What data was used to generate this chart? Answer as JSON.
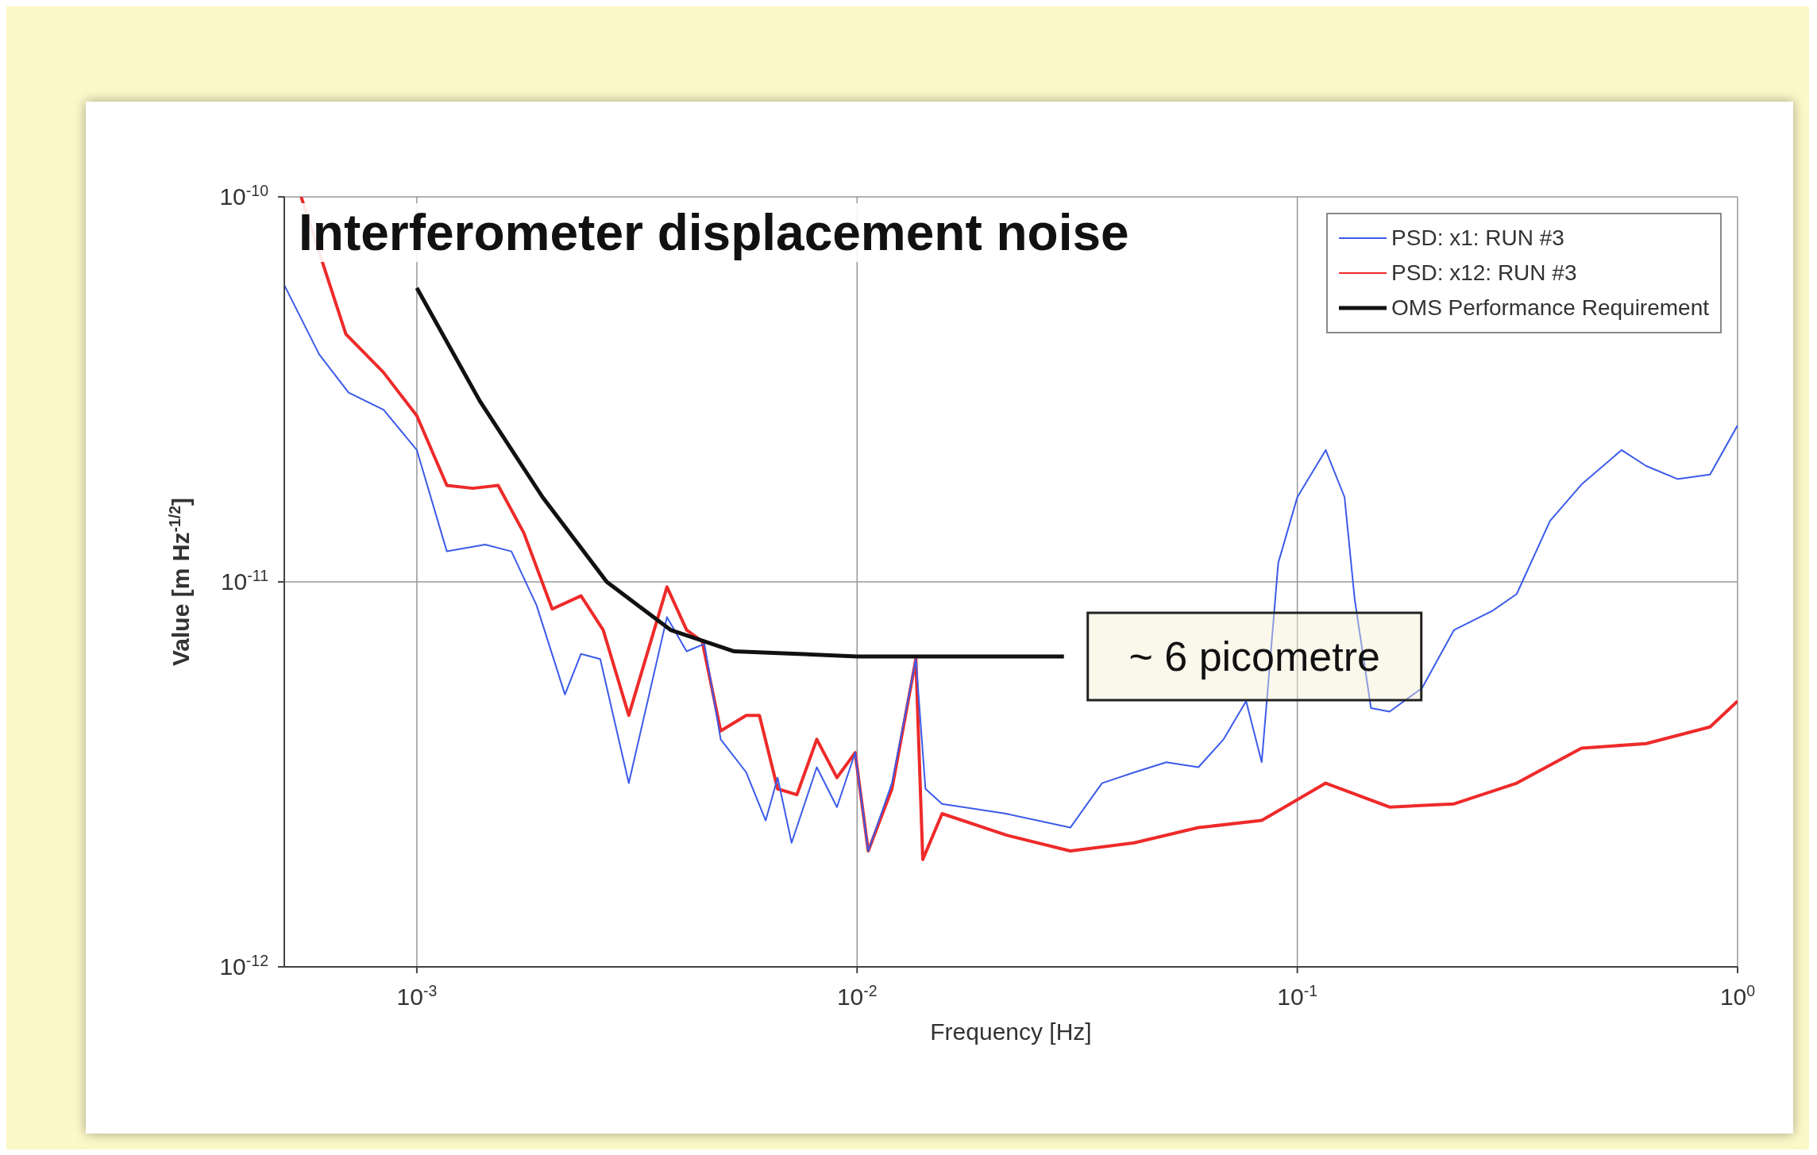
{
  "chart_data": {
    "type": "line",
    "title": "Interferometer displacement noise",
    "xlabel": "Frequency [Hz]",
    "ylabel": "Value [m Hz$^{-1/2}$]",
    "log": "xy",
    "grid": true,
    "legend": "top right",
    "marker": "none",
    "line_style": "solid",
    "xlim": [
      0.0005,
      1
    ],
    "ylim": [
      1e-12,
      1e-10
    ],
    "xticks": [
      {
        "value": 0.001,
        "label": "10$^{-3}$"
      },
      {
        "value": 0.01,
        "label": "10$^{-2}$"
      },
      {
        "value": 0.1,
        "label": "10$^{-1}$"
      },
      {
        "value": 1,
        "label": "10$^{0}$"
      }
    ],
    "yticks": [
      {
        "value": 1e-12,
        "label": "10$^{-12}$"
      },
      {
        "value": 1e-11,
        "label": "10$^{-11}$"
      },
      {
        "value": 1e-10,
        "label": "10$^{-10}$"
      }
    ],
    "annotations": [
      "~ 6 picometre"
    ],
    "series": [
      {
        "name": "PSD: x1: RUN #3",
        "color": "#3b5bea",
        "x": [
          0.0005,
          0.0006,
          0.0007,
          0.00084,
          0.001,
          0.00117,
          0.00143,
          0.00164,
          0.00187,
          0.00217,
          0.00236,
          0.00261,
          0.00303,
          0.0037,
          0.0041,
          0.0045,
          0.0049,
          0.0056,
          0.0062,
          0.0066,
          0.0071,
          0.0081,
          0.009,
          0.0099,
          0.0106,
          0.012,
          0.0136,
          0.0143,
          0.0156,
          0.0218,
          0.0305,
          0.036,
          0.0426,
          0.0504,
          0.0596,
          0.068,
          0.0765,
          0.083,
          0.0905,
          0.1,
          0.116,
          0.128,
          0.135,
          0.147,
          0.162,
          0.192,
          0.227,
          0.277,
          0.315,
          0.375,
          0.442,
          0.545,
          0.62,
          0.73,
          0.866,
          1
        ],
        "values": [
          5.9e-11,
          3.9e-11,
          3.1e-11,
          2.8e-11,
          2.2e-11,
          1.2e-11,
          1.25e-11,
          1.2e-11,
          8.7e-12,
          5.1e-12,
          6.5e-12,
          6.3e-12,
          3e-12,
          8.1e-12,
          6.6e-12,
          6.9e-12,
          3.9e-12,
          3.2e-12,
          2.4e-12,
          3.1e-12,
          2.1e-12,
          3.3e-12,
          2.6e-12,
          3.6e-12,
          2e-12,
          3e-12,
          6.3e-12,
          2.9e-12,
          2.65e-12,
          2.5e-12,
          2.3e-12,
          3e-12,
          3.2e-12,
          3.4e-12,
          3.3e-12,
          3.9e-12,
          4.9e-12,
          3.4e-12,
          1.12e-11,
          1.66e-11,
          2.2e-11,
          1.66e-11,
          9e-12,
          4.7e-12,
          4.6e-12,
          5.3e-12,
          7.5e-12,
          8.4e-12,
          9.3e-12,
          1.44e-11,
          1.79e-11,
          2.2e-11,
          2e-11,
          1.85e-11,
          1.9e-11,
          2.55e-11
        ]
      },
      {
        "name": "PSD: x12: RUN #3",
        "color": "#ee2a2a",
        "x": [
          0.000546,
          0.00069,
          0.00084,
          0.001,
          0.00117,
          0.00134,
          0.00153,
          0.00175,
          0.00203,
          0.00236,
          0.00265,
          0.00303,
          0.0037,
          0.0041,
          0.00445,
          0.0049,
          0.0056,
          0.006,
          0.0066,
          0.0073,
          0.0081,
          0.009,
          0.0099,
          0.0106,
          0.012,
          0.0136,
          0.0141,
          0.0156,
          0.0218,
          0.0305,
          0.0426,
          0.0596,
          0.083,
          0.116,
          0.162,
          0.227,
          0.315,
          0.442,
          0.62,
          0.866,
          1
        ],
        "values": [
          1e-10,
          4.4e-11,
          3.5e-11,
          2.7e-11,
          1.78e-11,
          1.75e-11,
          1.78e-11,
          1.34e-11,
          8.5e-12,
          9.2e-12,
          7.5e-12,
          4.5e-12,
          9.7e-12,
          7.5e-12,
          7e-12,
          4.1e-12,
          4.5e-12,
          4.5e-12,
          2.9e-12,
          2.8e-12,
          3.9e-12,
          3.1e-12,
          3.6e-12,
          2e-12,
          2.9e-12,
          6.3e-12,
          1.9e-12,
          2.5e-12,
          2.2e-12,
          2e-12,
          2.1e-12,
          2.3e-12,
          2.4e-12,
          3e-12,
          2.6e-12,
          2.65e-12,
          3e-12,
          3.7e-12,
          3.8e-12,
          4.2e-12,
          4.9e-12
        ]
      },
      {
        "name": "OMS Performance Requirement",
        "color": "#111111",
        "x": [
          0.001,
          0.00139,
          0.00193,
          0.0027,
          0.00377,
          0.00526,
          0.00735,
          0.01,
          0.0295
        ],
        "values": [
          5.8e-11,
          2.95e-11,
          1.66e-11,
          1e-11,
          7.5e-12,
          6.6e-12,
          6.5e-12,
          6.4e-12,
          6.4e-12
        ]
      }
    ]
  }
}
